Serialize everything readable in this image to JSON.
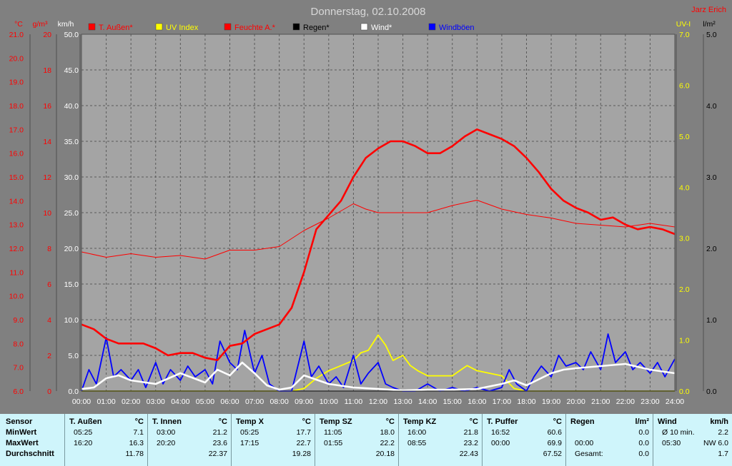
{
  "header": {
    "title": "Donnerstag, 02.10.2008",
    "credit": "Jarz Erich"
  },
  "axes": {
    "temp": {
      "unit": "°C",
      "ticks": [
        "21.0",
        "20.0",
        "19.0",
        "18.0",
        "17.0",
        "16.0",
        "15.0",
        "14.0",
        "13.0",
        "12.0",
        "11.0",
        "10.0",
        "9.0",
        "8.0",
        "7.0",
        "6.0"
      ],
      "color": "#ff0000"
    },
    "hum": {
      "unit": "g/m³",
      "ticks": [
        "20",
        "18",
        "16",
        "14",
        "12",
        "10",
        "8",
        "6",
        "4",
        "2",
        "0"
      ],
      "color": "#ff0000"
    },
    "wind": {
      "unit": "km/h",
      "ticks": [
        "50.0",
        "45.0",
        "40.0",
        "35.0",
        "30.0",
        "25.0",
        "20.0",
        "15.0",
        "10.0",
        "5.0",
        "0.0"
      ],
      "color": "#ffffff"
    },
    "uv": {
      "unit": "UV-I",
      "ticks": [
        "7.0",
        "6.0",
        "5.0",
        "4.0",
        "3.0",
        "2.0",
        "1.0",
        "0.0"
      ],
      "color": "#ffff00"
    },
    "rain": {
      "unit": "l/m²",
      "ticks": [
        "5.0",
        "4.0",
        "3.0",
        "2.0",
        "1.0",
        "0.0"
      ],
      "color": "#000000"
    }
  },
  "chart_data": {
    "type": "line",
    "title": "Donnerstag, 02.10.2008",
    "x_labels": [
      "00:00",
      "01:00",
      "02:00",
      "03:00",
      "04:00",
      "05:00",
      "06:00",
      "07:00",
      "08:00",
      "09:00",
      "10:00",
      "11:00",
      "12:00",
      "13:00",
      "14:00",
      "15:00",
      "16:00",
      "17:00",
      "18:00",
      "19:00",
      "20:00",
      "21:00",
      "22:00",
      "23:00",
      "24:00"
    ],
    "grid": true,
    "legend": [
      {
        "name": "T. Außen*",
        "color": "#ff0000"
      },
      {
        "name": "UV Index",
        "color": "#ffff00"
      },
      {
        "name": "Feuchte A.*",
        "color": "#ff0000"
      },
      {
        "name": "Regen*",
        "color": "#000000"
      },
      {
        "name": "Wind*",
        "color": "#ffffff"
      },
      {
        "name": "Windböen",
        "color": "#0000ff"
      }
    ],
    "series": [
      {
        "name": "T. Außen*",
        "axis": "temp",
        "ylim": [
          6,
          21
        ],
        "x": [
          0,
          0.5,
          1,
          1.5,
          2.5,
          3,
          3.5,
          4,
          4.5,
          5,
          5.5,
          6,
          6.5,
          7,
          7.5,
          8,
          8.5,
          9,
          9.5,
          10,
          10.5,
          11,
          11.5,
          12,
          12.5,
          13,
          13.5,
          14,
          14.5,
          15,
          15.5,
          16,
          16.5,
          17,
          17.5,
          18,
          18.5,
          19,
          19.5,
          20,
          20.5,
          21,
          21.5,
          22,
          22.5,
          23,
          23.5,
          24
        ],
        "y": [
          8.8,
          8.6,
          8.2,
          8.0,
          8.0,
          7.8,
          7.5,
          7.6,
          7.6,
          7.4,
          7.3,
          7.9,
          8.0,
          8.4,
          8.6,
          8.8,
          9.5,
          11.0,
          12.8,
          13.4,
          14.0,
          15.0,
          15.8,
          16.2,
          16.5,
          16.5,
          16.3,
          16.0,
          16.0,
          16.3,
          16.7,
          17.0,
          16.8,
          16.6,
          16.3,
          15.8,
          15.2,
          14.5,
          14.0,
          13.7,
          13.5,
          13.2,
          13.3,
          13.0,
          12.8,
          12.9,
          12.8,
          12.6
        ],
        "color": "#ff0000"
      },
      {
        "name": "Feuchte A.*",
        "axis": "hum",
        "ylim": [
          0,
          20
        ],
        "x": [
          0,
          1,
          2,
          3,
          4,
          5,
          6,
          7,
          8,
          9,
          10,
          11,
          11.5,
          12,
          13,
          14,
          15,
          16,
          17,
          18,
          19,
          20,
          21,
          22,
          23,
          24
        ],
        "y": [
          7.8,
          7.5,
          7.7,
          7.5,
          7.6,
          7.4,
          7.9,
          7.9,
          8.1,
          9.0,
          9.7,
          10.5,
          10.2,
          10.0,
          10.0,
          10.0,
          10.4,
          10.7,
          10.2,
          9.9,
          9.7,
          9.4,
          9.3,
          9.2,
          9.4,
          9.2
        ],
        "color": "#ff0000"
      },
      {
        "name": "Wind*",
        "axis": "wind",
        "ylim": [
          0,
          50
        ],
        "x": [
          0,
          0.5,
          1,
          1.5,
          2,
          3,
          4,
          5,
          5.5,
          6,
          6.5,
          7,
          7.5,
          8,
          8.5,
          9,
          10,
          11,
          12,
          13,
          14,
          15,
          16,
          17,
          17.5,
          18,
          19,
          19.5,
          20,
          21,
          22,
          23,
          24
        ],
        "y": [
          0.3,
          0.5,
          1.8,
          2.2,
          1.5,
          1.0,
          2.5,
          1.2,
          3.0,
          2.2,
          4.0,
          2.5,
          0.8,
          0.2,
          0.5,
          2.2,
          1.0,
          0.5,
          0.3,
          0.1,
          0.2,
          0.2,
          0.3,
          1.0,
          1.5,
          0.8,
          2.5,
          3.0,
          3.2,
          3.5,
          3.8,
          3.0,
          2.5
        ],
        "color": "#ffffff"
      },
      {
        "name": "Windböen",
        "axis": "wind",
        "ylim": [
          0,
          50
        ],
        "x": [
          0,
          0.3,
          0.6,
          1,
          1.3,
          1.6,
          2,
          2.3,
          2.6,
          3,
          3.3,
          3.6,
          4,
          4.3,
          4.6,
          5,
          5.3,
          5.6,
          6,
          6.3,
          6.6,
          7,
          7.3,
          7.6,
          8,
          8.5,
          9,
          9.3,
          9.6,
          10,
          10.3,
          10.6,
          11,
          11.3,
          11.6,
          12,
          12.3,
          12.6,
          13,
          13.5,
          14,
          14.5,
          15,
          15.5,
          16,
          16.5,
          17,
          17.3,
          17.6,
          18,
          18.3,
          18.6,
          19,
          19.3,
          19.6,
          20,
          20.3,
          20.6,
          21,
          21.3,
          21.6,
          22,
          22.3,
          22.6,
          23,
          23.3,
          23.6,
          24
        ],
        "y": [
          0,
          3,
          1,
          7.5,
          2,
          3,
          1.5,
          3,
          0.5,
          4,
          1,
          3,
          1.5,
          3.5,
          2,
          3,
          1,
          7,
          4,
          3,
          8.5,
          2.5,
          5,
          1,
          0,
          0,
          7,
          2,
          3.5,
          1,
          2,
          0.5,
          5,
          1,
          2.5,
          4,
          1,
          0.5,
          0,
          0,
          1,
          0,
          0.5,
          0,
          0.5,
          0,
          0.5,
          3,
          1,
          0,
          2,
          3.5,
          2,
          5,
          3.5,
          4,
          3,
          5.5,
          3,
          8,
          4,
          5.5,
          3,
          4,
          2.5,
          4,
          2,
          4.5
        ],
        "color": "#0000ff"
      },
      {
        "name": "UV Index",
        "axis": "uv",
        "ylim": [
          0,
          7
        ],
        "x": [
          0,
          8.5,
          9,
          9.5,
          10,
          10.5,
          11,
          11.3,
          11.6,
          12,
          12.3,
          12.6,
          13,
          13.3,
          13.6,
          14,
          14.5,
          15,
          15.3,
          15.6,
          16,
          16.5,
          17,
          17.5,
          18,
          24
        ],
        "y": [
          0,
          0,
          0.05,
          0.25,
          0.4,
          0.5,
          0.6,
          0.75,
          0.8,
          1.1,
          0.9,
          0.6,
          0.7,
          0.5,
          0.4,
          0.3,
          0.3,
          0.3,
          0.4,
          0.5,
          0.4,
          0.35,
          0.3,
          0.05,
          0,
          0
        ],
        "color": "#ffff00"
      },
      {
        "name": "Regen*",
        "axis": "rain",
        "ylim": [
          0,
          5
        ],
        "x": [
          0,
          24
        ],
        "y": [
          0,
          0
        ],
        "color": "#000000"
      }
    ]
  },
  "stats": {
    "row_labels": [
      "Sensor",
      "MinWert",
      "MaxWert",
      "Durchschnitt"
    ],
    "sensors": [
      {
        "name": "T. Außen",
        "unit": "°C",
        "min_time": "05:25",
        "min": "7.1",
        "max_time": "16:20",
        "max": "16.3",
        "avg": "11.78"
      },
      {
        "name": "T. Innen",
        "unit": "°C",
        "min_time": "03:00",
        "min": "21.2",
        "max_time": "20:20",
        "max": "23.6",
        "avg": "22.37"
      },
      {
        "name": "Temp X",
        "unit": "°C",
        "min_time": "05:25",
        "min": "17.7",
        "max_time": "17:15",
        "max": "22.7",
        "avg": "19.28"
      },
      {
        "name": "Temp SZ",
        "unit": "°C",
        "min_time": "11:05",
        "min": "18.0",
        "max_time": "01:55",
        "max": "22.2",
        "avg": "20.18"
      },
      {
        "name": "Temp KZ",
        "unit": "°C",
        "min_time": "16:00",
        "min": "21.8",
        "max_time": "08:55",
        "max": "23.2",
        "avg": "22.43"
      },
      {
        "name": "T. Puffer",
        "unit": "°C",
        "min_time": "16:52",
        "min": "60.6",
        "max_time": "00:00",
        "max": "69.9",
        "avg": "67.52"
      },
      {
        "name": "Regen",
        "unit": "l/m²",
        "min_time": "",
        "min": "0.0",
        "max_time": "00:00",
        "max": "0.0",
        "avg_label": "Gesamt:",
        "avg": "0.0"
      },
      {
        "name": "Wind",
        "unit": "km/h",
        "min_time": "Ø 10 min.",
        "min": "2.2",
        "max_time": "05:30",
        "max": "NW 6.0",
        "avg": "1.7"
      }
    ]
  }
}
